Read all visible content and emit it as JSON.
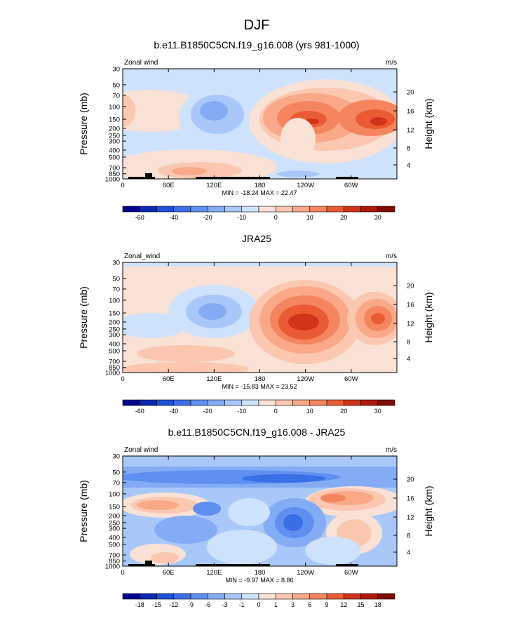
{
  "figure": {
    "title": "DJF"
  },
  "chart_data": [
    {
      "type": "heatmap",
      "title": "b.e11.B1850C5CN.f19_g16.008 (yrs 981-1000)",
      "left_label": "Zonal wind",
      "units_label": "m/s",
      "ylabel": "Pressure (mb)",
      "right_label": "Height (km)",
      "y_ticks": [
        "30",
        "50",
        "70",
        "100",
        "150",
        "200",
        "250",
        "300",
        "400",
        "500",
        "700",
        "850",
        "1000"
      ],
      "x_ticks": [
        "0",
        "60E",
        "120E",
        "180",
        "120W",
        "60W"
      ],
      "height_ticks": [
        "20",
        "16",
        "12",
        "8",
        "4"
      ],
      "min_max": "MIN = -18.24  MAX = 22.47",
      "colorbar_labels": [
        "-60",
        "-40",
        "-20",
        "-10",
        "0",
        "10",
        "20",
        "30"
      ],
      "colors": [
        "#00008e",
        "#0a28b4",
        "#1d4fd8",
        "#3b6fe6",
        "#5f8ff0",
        "#84acf5",
        "#a9c8f9",
        "#cfe2fc",
        "#f9e1d5",
        "#fbc7b0",
        "#f9a888",
        "#f5855f",
        "#ea5b34",
        "#d23319",
        "#ae1808",
        "#7f0b02"
      ],
      "blobs": [
        {
          "x": 10,
          "y": 125,
          "rx": 12,
          "ry": 28,
          "level": 1
        },
        {
          "x": 130,
          "y": 125,
          "rx": 50,
          "ry": 30,
          "level": -2
        },
        {
          "x": 125,
          "y": 145,
          "rx": 30,
          "ry": 16,
          "level": -3
        },
        {
          "x": 260,
          "y": 155,
          "rx": 120,
          "ry": 55,
          "level": 1
        },
        {
          "x": 255,
          "y": 150,
          "rx": 105,
          "ry": 42,
          "level": 2
        },
        {
          "x": 245,
          "y": 145,
          "rx": 78,
          "ry": 30,
          "level": 3
        },
        {
          "x": 240,
          "y": 140,
          "rx": 52,
          "ry": 22,
          "level": 4
        },
        {
          "x": 237,
          "y": 140,
          "rx": 28,
          "ry": 12,
          "level": 5
        },
        {
          "x": 335,
          "y": 145,
          "rx": 48,
          "ry": 32,
          "level": 3
        },
        {
          "x": 335,
          "y": 145,
          "rx": 30,
          "ry": 18,
          "level": 4
        },
        {
          "x": 340,
          "y": 145,
          "rx": 14,
          "ry": 8,
          "level": 5
        },
        {
          "x": 130,
          "y": 620,
          "rx": 120,
          "ry": 170,
          "level": 1
        },
        {
          "x": 130,
          "y": 720,
          "rx": 60,
          "ry": 120,
          "level": 2
        }
      ]
    },
    {
      "type": "heatmap",
      "title": "JRA25",
      "left_label": "Zonal_wind",
      "units_label": "m/s",
      "ylabel": "Pressure (mb)",
      "right_label": "Height (km)",
      "y_ticks": [
        "30",
        "50",
        "70",
        "100",
        "150",
        "200",
        "250",
        "300",
        "400",
        "500",
        "700",
        "850",
        "1000"
      ],
      "x_ticks": [
        "0",
        "60E",
        "120E",
        "180",
        "120W",
        "60W"
      ],
      "height_ticks": [
        "20",
        "16",
        "12",
        "8",
        "4"
      ],
      "min_max": "MIN = -15.83  MAX = 23.52",
      "colorbar_labels": [
        "-60",
        "-40",
        "-20",
        "-10",
        "0",
        "10",
        "20",
        "30"
      ],
      "colors": [
        "#00008e",
        "#0a28b4",
        "#1d4fd8",
        "#3b6fe6",
        "#5f8ff0",
        "#84acf5",
        "#a9c8f9",
        "#cfe2fc",
        "#f9e1d5",
        "#fbc7b0",
        "#f9a888",
        "#f5855f",
        "#ea5b34",
        "#d23319",
        "#ae1808",
        "#7f0b02"
      ]
    },
    {
      "type": "heatmap",
      "title": "b.e11.B1850C5CN.f19_g16.008 - JRA25",
      "left_label": "Zonal wind",
      "units_label": "m/s",
      "ylabel": "Pressure (mb)",
      "right_label": "Height (km)",
      "y_ticks": [
        "30",
        "50",
        "70",
        "100",
        "150",
        "200",
        "250",
        "300",
        "400",
        "500",
        "700",
        "850",
        "1000"
      ],
      "x_ticks": [
        "0",
        "60E",
        "120E",
        "180",
        "120W",
        "60W"
      ],
      "height_ticks": [
        "20",
        "16",
        "12",
        "8",
        "4"
      ],
      "min_max": "MIN = -9.97  MAX = 8.86",
      "colorbar_labels": [
        "-18",
        "-15",
        "-12",
        "-9",
        "-6",
        "-3",
        "-1",
        "0",
        "1",
        "3",
        "6",
        "9",
        "12",
        "15",
        "18"
      ],
      "colors": [
        "#00008e",
        "#0a28b4",
        "#1d4fd8",
        "#3b6fe6",
        "#5f8ff0",
        "#84acf5",
        "#a9c8f9",
        "#cfe2fc",
        "#f9e1d5",
        "#fbc7b0",
        "#f9a888",
        "#f5855f",
        "#ea5b34",
        "#d23319",
        "#ae1808",
        "#7f0b02"
      ]
    }
  ]
}
